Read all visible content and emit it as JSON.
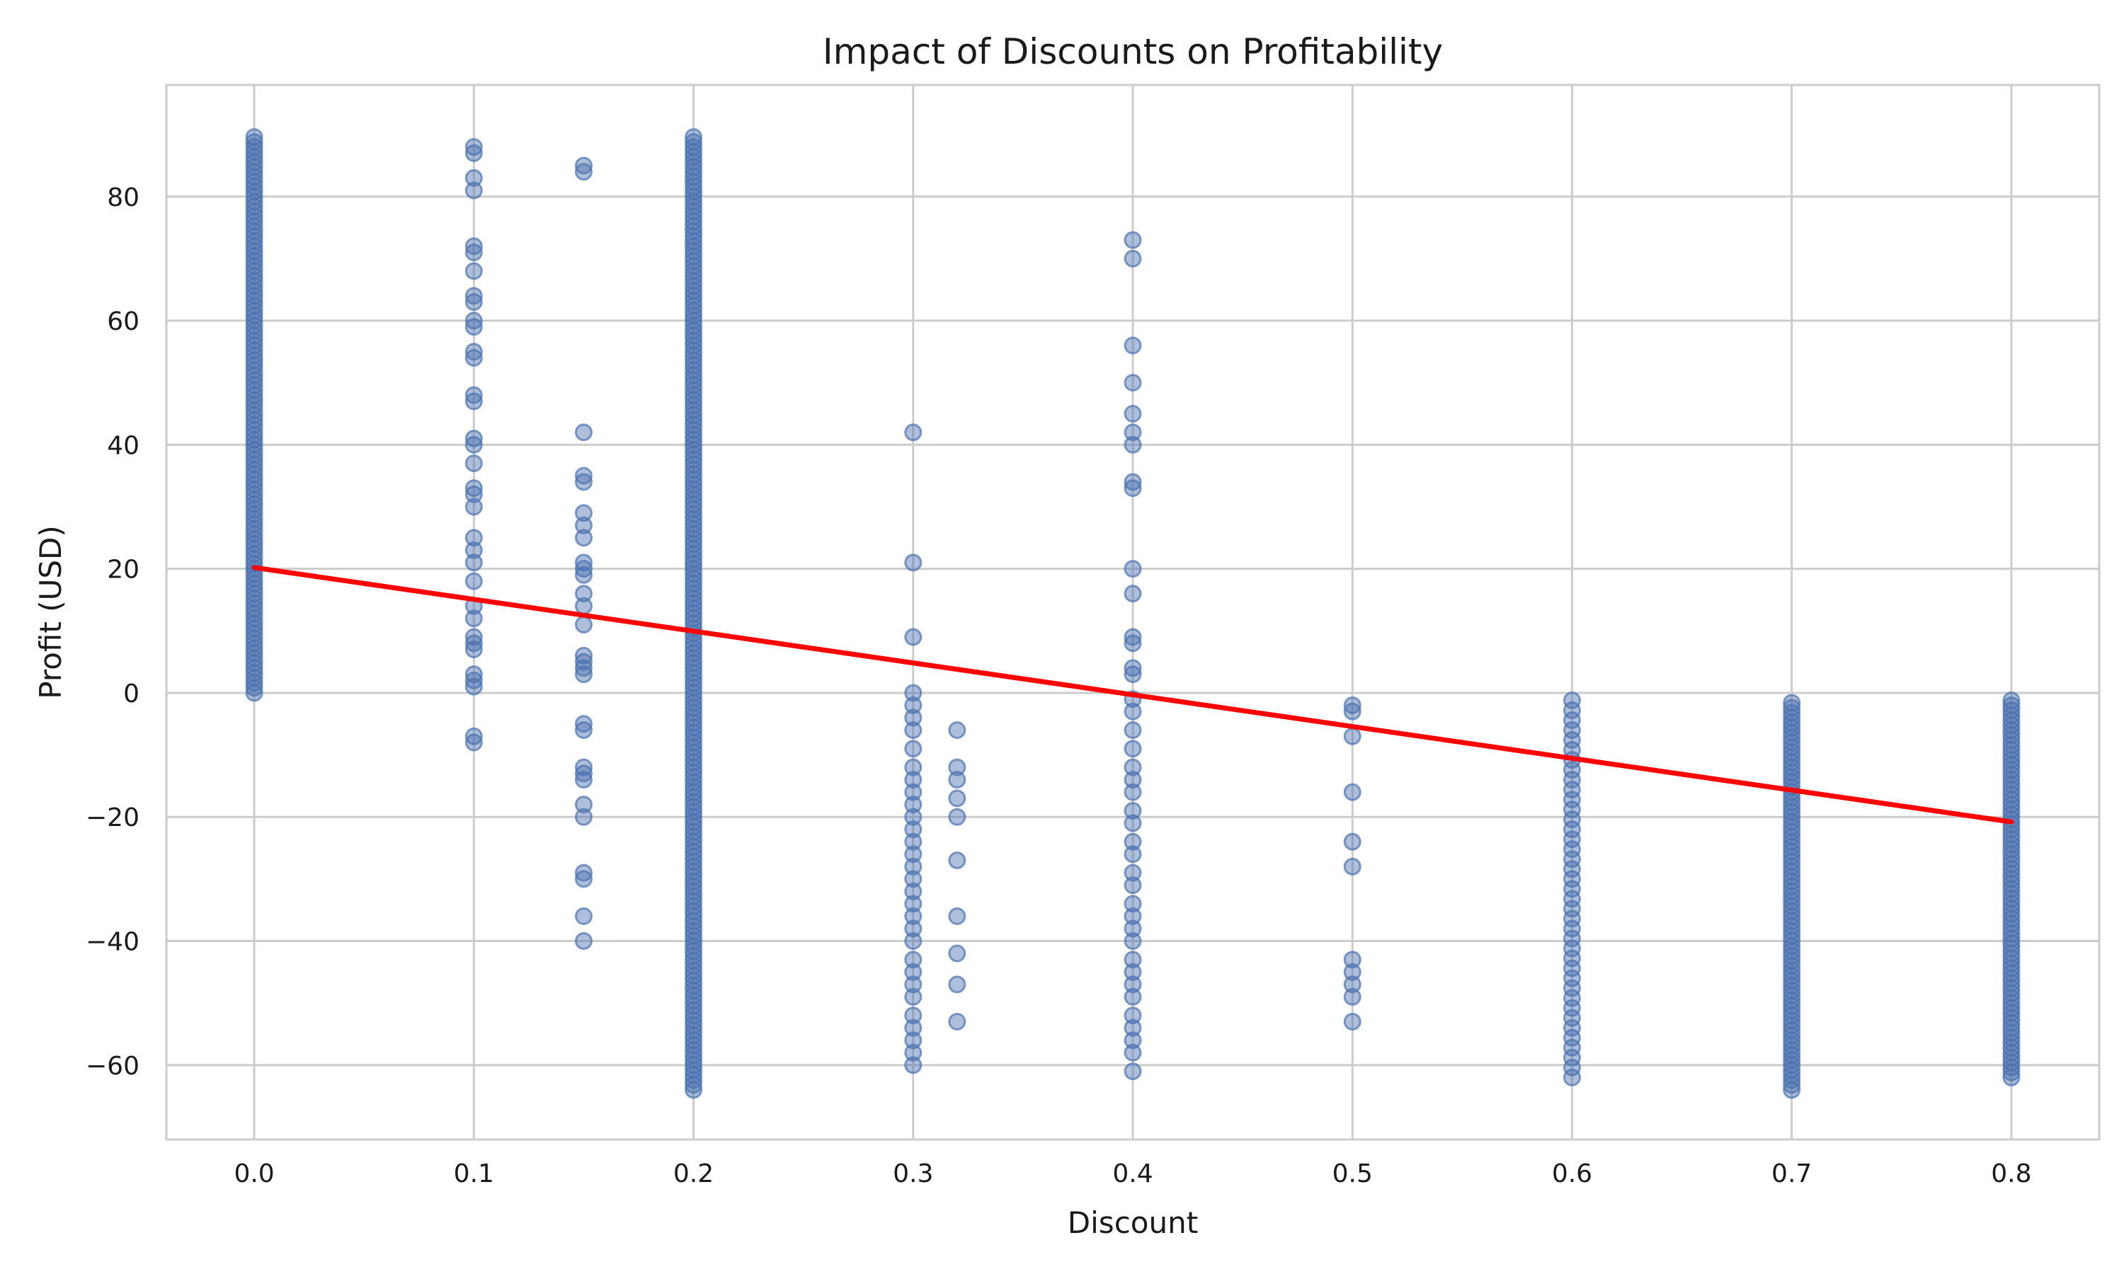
{
  "colors": {
    "points": "#4c72b0",
    "trend": "#ff0000",
    "grid": "#cccccc",
    "text": "#1a1a1a"
  },
  "chart_data": {
    "type": "scatter",
    "title": "Impact of Discounts on Profitability",
    "xlabel": "Discount",
    "ylabel": "Profit (USD)",
    "xlim": [
      -0.04,
      0.84
    ],
    "ylim": [
      -72,
      98
    ],
    "xticks": [
      0.0,
      0.1,
      0.2,
      0.3,
      0.4,
      0.5,
      0.6,
      0.7,
      0.8
    ],
    "xtick_labels": [
      "0.0",
      "0.1",
      "0.2",
      "0.3",
      "0.4",
      "0.5",
      "0.6",
      "0.7",
      "0.8"
    ],
    "yticks": [
      -60,
      -40,
      -20,
      0,
      20,
      40,
      60,
      80
    ],
    "ytick_labels": [
      "−60",
      "−40",
      "−20",
      "0",
      "20",
      "40",
      "60",
      "80"
    ],
    "grid": true,
    "legend": "none",
    "series": [
      {
        "kind": "scatter",
        "points": [
          {
            "discount": 0.0,
            "profit_range": [
              0,
              90
            ],
            "dense": true
          },
          {
            "discount": 0.1,
            "profits": [
              88,
              87,
              83,
              81,
              72,
              71,
              68,
              64,
              63,
              60,
              59,
              55,
              54,
              48,
              47,
              41,
              40,
              37,
              33,
              32,
              30,
              25,
              23,
              21,
              18,
              14,
              12,
              9,
              8,
              7,
              3,
              2,
              1,
              -7,
              -8
            ]
          },
          {
            "discount": 0.15,
            "profits": [
              85,
              84,
              42,
              35,
              34,
              29,
              27,
              25,
              21,
              20,
              19,
              16,
              14,
              11,
              6,
              5,
              4,
              3,
              -5,
              -6,
              -12,
              -13,
              -14,
              -18,
              -20,
              -29,
              -30,
              -36,
              -40
            ]
          },
          {
            "discount": 0.2,
            "profit_range": [
              -64,
              90
            ],
            "dense": true
          },
          {
            "discount": 0.3,
            "profits": [
              42,
              21,
              9,
              0,
              -2,
              -4,
              -6,
              -9,
              -12,
              -14,
              -16,
              -18,
              -20,
              -22,
              -24,
              -26,
              -28,
              -30,
              -32,
              -34,
              -36,
              -38,
              -40,
              -43,
              -45,
              -47,
              -49,
              -52,
              -54,
              -56,
              -58,
              -60
            ]
          },
          {
            "discount": 0.32,
            "profits": [
              -6,
              -12,
              -14,
              -17,
              -20,
              -27,
              -36,
              -42,
              -47,
              -53
            ]
          },
          {
            "discount": 0.4,
            "profits": [
              73,
              70,
              56,
              50,
              45,
              42,
              40,
              34,
              33,
              20,
              16,
              9,
              8,
              4,
              3,
              -1,
              -3,
              -6,
              -9,
              -12,
              -14,
              -16,
              -19,
              -21,
              -24,
              -26,
              -29,
              -31,
              -34,
              -36,
              -38,
              -40,
              -43,
              -45,
              -47,
              -49,
              -52,
              -54,
              -56,
              -58,
              -61
            ]
          },
          {
            "discount": 0.5,
            "profits": [
              -2,
              -3,
              -7,
              -16,
              -24,
              -28,
              -43,
              -45,
              -47,
              -49,
              -53
            ]
          },
          {
            "discount": 0.6,
            "profit_range": [
              -62,
              -1
            ],
            "dense": false
          },
          {
            "discount": 0.7,
            "profit_range": [
              -64,
              -1
            ],
            "dense": true
          },
          {
            "discount": 0.8,
            "profit_range": [
              -62,
              -1
            ],
            "dense": true
          }
        ]
      },
      {
        "kind": "trend_line",
        "x": [
          0.0,
          0.8
        ],
        "y": [
          20.2,
          -20.8
        ]
      }
    ]
  }
}
